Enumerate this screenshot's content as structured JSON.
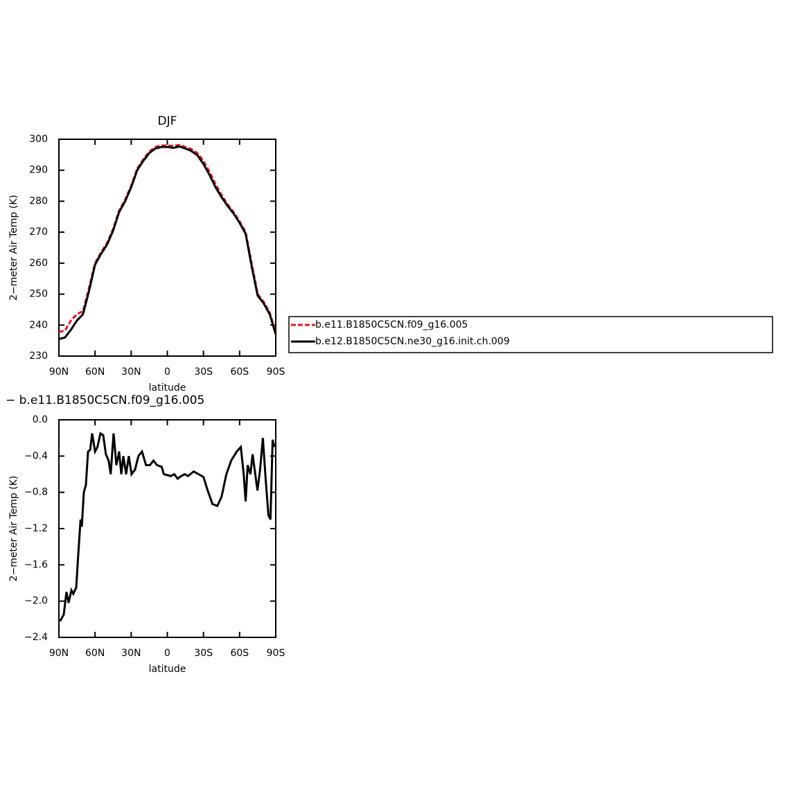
{
  "chart_data": [
    {
      "type": "line",
      "title": "DJF",
      "xlabel": "latitude",
      "ylabel": "2−meter Air Temp (K)",
      "x": [
        90,
        85,
        80,
        75,
        70,
        65,
        60,
        55,
        50,
        45,
        40,
        35,
        30,
        25,
        20,
        15,
        10,
        5,
        0,
        -5,
        -10,
        -15,
        -20,
        -25,
        -30,
        -35,
        -40,
        -45,
        -50,
        -55,
        -60,
        -65,
        -70,
        -75,
        -80,
        -85,
        -90
      ],
      "series": [
        {
          "name": "b.e11.B1850C5CN.f09_g16.005",
          "color": "#e8141c",
          "linestyle": "dashed",
          "values": [
            237.8,
            238.2,
            241.5,
            243.5,
            244.5,
            252,
            260,
            263.5,
            266.5,
            271,
            277,
            280.5,
            285,
            290.5,
            293.5,
            296,
            297.5,
            298,
            298,
            297.8,
            298.2,
            297.5,
            296.8,
            295.5,
            293,
            289.5,
            285.5,
            282,
            279,
            276.5,
            273.5,
            270,
            260,
            250,
            247.5,
            244,
            237.5
          ]
        },
        {
          "name": "b.e12.B1850C5CN.ne30_g16.init.ch.009",
          "color": "#000000",
          "linestyle": "solid",
          "values": [
            235.5,
            236,
            238.5,
            241.5,
            243.5,
            251,
            259.5,
            263,
            266,
            270.5,
            276.5,
            280,
            284.5,
            290,
            293,
            295.5,
            297,
            297.5,
            297.5,
            297.2,
            297.7,
            297,
            296.2,
            294.8,
            292,
            288.5,
            284.5,
            281.3,
            278.5,
            276,
            273,
            269.5,
            259,
            249.5,
            247,
            243.5,
            237
          ]
        }
      ],
      "xlim": [
        90,
        -90
      ],
      "xticks": [
        {
          "value": 90,
          "label": "90N"
        },
        {
          "value": 60,
          "label": "60N"
        },
        {
          "value": 30,
          "label": "30N"
        },
        0,
        {
          "value": -30,
          "label": "30S"
        },
        {
          "value": -60,
          "label": "60S"
        },
        {
          "value": -90,
          "label": "90S"
        }
      ],
      "ylim": [
        230,
        300
      ],
      "yticks": [
        230,
        240,
        250,
        260,
        270,
        280,
        290,
        300
      ],
      "legend": "right"
    },
    {
      "type": "line",
      "title": "− b.e11.B1850C5CN.f09_g16.005",
      "xlabel": "latitude",
      "ylabel": "2−meter Air Temp (K)",
      "x": [
        89,
        86,
        83.7,
        82,
        79.6,
        78,
        75.6,
        74,
        72,
        71,
        69.3,
        67.6,
        65.8,
        64,
        62.4,
        60,
        58,
        55.5,
        53.2,
        51,
        48.7,
        47,
        44.6,
        42.3,
        40,
        38.2,
        36.5,
        34.2,
        32,
        29.7,
        26.8,
        24,
        21,
        17.7,
        14.4,
        11.5,
        8.6,
        4.6,
        2.9,
        -2.9,
        -5.8,
        -8.6,
        -11.5,
        -14.4,
        -17.2,
        -21.9,
        -25.9,
        -30,
        -33.5,
        -37.5,
        -41.5,
        -45,
        -49,
        -53,
        -57.6,
        -61,
        -63.4,
        -65,
        -66.7,
        -69,
        -70.8,
        -73,
        -74.8,
        -77,
        -79.3,
        -81.6,
        -83.9,
        -85.6,
        -87.4,
        -89
      ],
      "series": [
        {
          "color": "#000000",
          "linestyle": "solid",
          "values": [
            -2.22,
            -2.15,
            -1.9,
            -2.02,
            -1.88,
            -1.92,
            -1.85,
            -1.5,
            -1.1,
            -1.18,
            -0.8,
            -0.72,
            -0.35,
            -0.33,
            -0.15,
            -0.35,
            -0.3,
            -0.15,
            -0.17,
            -0.38,
            -0.45,
            -0.6,
            -0.15,
            -0.5,
            -0.35,
            -0.6,
            -0.4,
            -0.6,
            -0.4,
            -0.6,
            -0.55,
            -0.4,
            -0.35,
            -0.5,
            -0.5,
            -0.45,
            -0.5,
            -0.52,
            -0.6,
            -0.62,
            -0.6,
            -0.65,
            -0.62,
            -0.6,
            -0.62,
            -0.57,
            -0.6,
            -0.63,
            -0.78,
            -0.93,
            -0.95,
            -0.85,
            -0.6,
            -0.45,
            -0.35,
            -0.3,
            -0.6,
            -0.9,
            -0.5,
            -0.6,
            -0.38,
            -0.6,
            -0.78,
            -0.55,
            -0.2,
            -0.65,
            -1.05,
            -1.1,
            -0.22,
            -0.3
          ]
        }
      ],
      "xlim": [
        90,
        -90
      ],
      "xticks": [
        {
          "value": 90,
          "label": "90N"
        },
        {
          "value": 60,
          "label": "60N"
        },
        {
          "value": 30,
          "label": "30N"
        },
        0,
        {
          "value": -30,
          "label": "30S"
        },
        {
          "value": -60,
          "label": "60S"
        },
        {
          "value": -90,
          "label": "90S"
        }
      ],
      "ylim": [
        -2.4,
        0
      ],
      "yticks": [
        {
          "value": -2.4,
          "label": "−2.4"
        },
        {
          "value": -2.0,
          "label": "−2.0"
        },
        {
          "value": -1.6,
          "label": "−1.6"
        },
        {
          "value": -1.2,
          "label": "−1.2"
        },
        {
          "value": -0.8,
          "label": "−0.8"
        },
        {
          "value": -0.4,
          "label": "−0.4"
        },
        {
          "value": 0,
          "label": "0.0"
        }
      ]
    }
  ]
}
